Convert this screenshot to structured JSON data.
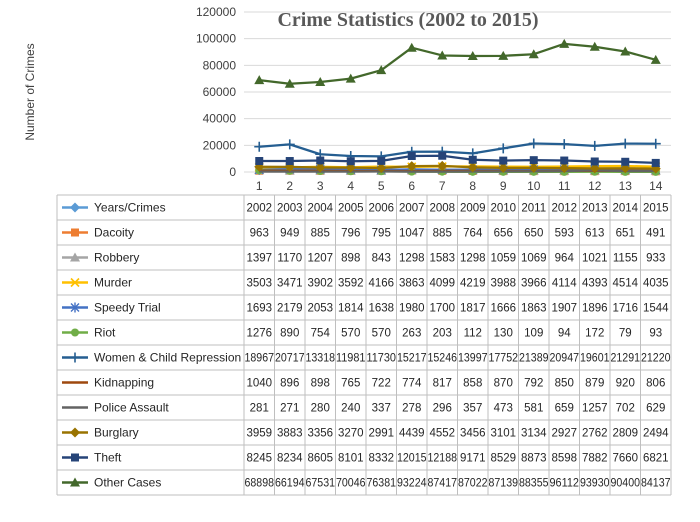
{
  "chart_data": {
    "type": "line",
    "title": "Crime Statistics (2002 to 2015)",
    "ylabel": "Number of Crimes",
    "xlabel": "",
    "ylim": [
      0,
      120000
    ],
    "yticks": [
      0,
      20000,
      40000,
      60000,
      80000,
      100000,
      120000
    ],
    "x": [
      1,
      2,
      3,
      4,
      5,
      6,
      7,
      8,
      9,
      10,
      11,
      12,
      13,
      14
    ],
    "header_label": "Years/Crimes",
    "header_color": "#5B9BD5",
    "years": [
      "2002",
      "2003",
      "2004",
      "2005",
      "2006",
      "2007",
      "2008",
      "2009",
      "2010",
      "2011",
      "2012",
      "2013",
      "2014",
      "2015"
    ],
    "series": [
      {
        "name": "Dacoity",
        "color": "#ED7D31",
        "marker": "square",
        "values": [
          963,
          949,
          885,
          796,
          795,
          1047,
          885,
          764,
          656,
          650,
          593,
          613,
          651,
          491
        ]
      },
      {
        "name": "Robbery",
        "color": "#A5A5A5",
        "marker": "triangle",
        "values": [
          1397,
          1170,
          1207,
          898,
          843,
          1298,
          1583,
          1298,
          1059,
          1069,
          964,
          1021,
          1155,
          933
        ]
      },
      {
        "name": "Murder",
        "color": "#FFC000",
        "marker": "x",
        "values": [
          3503,
          3471,
          3902,
          3592,
          4166,
          3863,
          4099,
          4219,
          3988,
          3966,
          4114,
          4393,
          4514,
          4035
        ]
      },
      {
        "name": "Speedy Trial",
        "color": "#4472C4",
        "marker": "star",
        "values": [
          1693,
          2179,
          2053,
          1814,
          1638,
          1980,
          1700,
          1817,
          1666,
          1863,
          1907,
          1896,
          1716,
          1544
        ]
      },
      {
        "name": "Riot",
        "color": "#70AD47",
        "marker": "circle",
        "values": [
          1276,
          890,
          754,
          570,
          570,
          263,
          203,
          112,
          130,
          109,
          94,
          172,
          79,
          93
        ]
      },
      {
        "name": "Women & Child Repression",
        "color": "#255E91",
        "marker": "plus",
        "values": [
          18967,
          20717,
          13318,
          11981,
          11730,
          15217,
          15246,
          13997,
          17752,
          21389,
          20947,
          19601,
          21291,
          21220
        ]
      },
      {
        "name": "Kidnapping",
        "color": "#9E480E",
        "marker": "none",
        "values": [
          1040,
          896,
          898,
          765,
          722,
          774,
          817,
          858,
          870,
          792,
          850,
          879,
          920,
          806
        ]
      },
      {
        "name": "Police Assault",
        "color": "#636363",
        "marker": "none",
        "values": [
          281,
          271,
          280,
          240,
          337,
          278,
          296,
          357,
          473,
          581,
          659,
          1257,
          702,
          629
        ]
      },
      {
        "name": "Burglary",
        "color": "#997300",
        "marker": "diamond",
        "values": [
          3959,
          3883,
          3356,
          3270,
          2991,
          4439,
          4552,
          3456,
          3101,
          3134,
          2927,
          2762,
          2809,
          2494
        ]
      },
      {
        "name": "Theft",
        "color": "#264478",
        "marker": "square",
        "values": [
          8245,
          8234,
          8605,
          8101,
          8332,
          12015,
          12188,
          9171,
          8529,
          8873,
          8598,
          7882,
          7660,
          6821
        ]
      },
      {
        "name": "Other Cases",
        "color": "#43682B",
        "marker": "triangle",
        "values": [
          68898,
          66194,
          67531,
          70046,
          76381,
          93224,
          87417,
          87022,
          87139,
          88355,
          96112,
          93930,
          90400,
          84137
        ]
      }
    ]
  }
}
